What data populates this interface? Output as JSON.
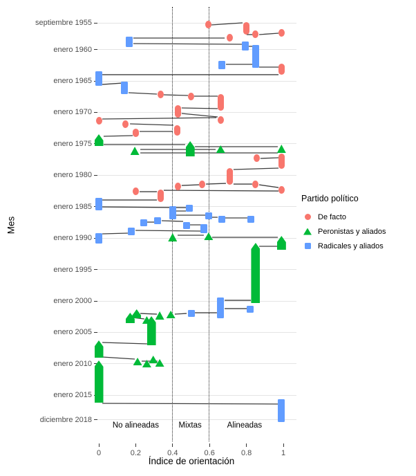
{
  "figure": {
    "x_axis_title": "Índice de orientación",
    "y_axis_title": "Mes",
    "background": "#FFFFFF",
    "gridline_color": "#E4E4E4",
    "connector_color": "#1C1C1C"
  },
  "legend": {
    "title": "Partido político",
    "items": [
      {
        "label": "De facto",
        "color": "#F8766D",
        "shape": "circle"
      },
      {
        "label": "Peronistas y aliados",
        "color": "#00BA38",
        "shape": "triangle"
      },
      {
        "label": "Radicales y aliados",
        "color": "#619CFF",
        "shape": "square"
      }
    ]
  },
  "chart_data": {
    "type": "scatter",
    "subtype": "government-timeline-segments",
    "title": "",
    "xlabel": "Índice de orientación",
    "ylabel": "Mes",
    "xlim": [
      0,
      1
    ],
    "ylim_years": [
      1955.75,
      2018.92
    ],
    "x_ticks": [
      {
        "label": "0",
        "v": 0
      },
      {
        "label": "0.2",
        "v": 0.2
      },
      {
        "label": "0.4",
        "v": 0.4
      },
      {
        "label": "0.6",
        "v": 0.6
      },
      {
        "label": "0.8",
        "v": 0.8
      },
      {
        "label": "1",
        "v": 1
      }
    ],
    "y_ticks": [
      {
        "label": "septiembre 1955",
        "year": 1955.75
      },
      {
        "label": "enero 1960",
        "year": 1960.0
      },
      {
        "label": "enero 1965",
        "year": 1965.0
      },
      {
        "label": "enero 1970",
        "year": 1970.0
      },
      {
        "label": "enero 1975",
        "year": 1975.0
      },
      {
        "label": "enero 1980",
        "year": 1980.0
      },
      {
        "label": "enero 1985",
        "year": 1985.0
      },
      {
        "label": "enero 1990",
        "year": 1990.0
      },
      {
        "label": "enero 1995",
        "year": 1995.0
      },
      {
        "label": "enero 2000",
        "year": 2000.0
      },
      {
        "label": "enero 2005",
        "year": 2005.0
      },
      {
        "label": "enero 2010",
        "year": 2010.0
      },
      {
        "label": "enero 2015",
        "year": 2015.0
      },
      {
        "label": "diciembre 2018",
        "year": 2018.92
      }
    ],
    "reference_lines_x": [
      0.4,
      0.6
    ],
    "zones": [
      {
        "label": "No alineadas",
        "x_center": 0.2
      },
      {
        "label": "Mixtas",
        "x_center": 0.495
      },
      {
        "label": "Alineadas",
        "x_center": 0.79
      }
    ],
    "series": [
      {
        "name": "De facto",
        "color": "#F8766D",
        "shape": "circle",
        "points": [
          [
            0.595,
            1956.08,
            null
          ],
          [
            0.8,
            1955.64,
            1957.62
          ],
          [
            0.71,
            1958.17,
            null
          ],
          [
            0.85,
            1957.62,
            null
          ],
          [
            0.99,
            1957.4,
            null
          ],
          [
            0.99,
            1962.24,
            1964.0
          ],
          [
            0.335,
            1967.09,
            null
          ],
          [
            0.5,
            1967.42,
            null
          ],
          [
            0.66,
            1967.09,
            1969.73
          ],
          [
            0.43,
            1968.85,
            1970.83
          ],
          [
            0.66,
            1970.61,
            1971.71
          ],
          [
            0.0,
            1971.27,
            null
          ],
          [
            0.145,
            1971.82,
            null
          ],
          [
            0.425,
            1972.04,
            1973.69
          ],
          [
            0.2,
            1972.59,
            1973.91
          ],
          [
            0.855,
            1977.32,
            null
          ],
          [
            0.99,
            1976.55,
            1978.97
          ],
          [
            0.71,
            1978.86,
            1981.51
          ],
          [
            0.43,
            1981.73,
            null
          ],
          [
            0.56,
            1981.4,
            null
          ],
          [
            0.85,
            1981.4,
            null
          ],
          [
            0.99,
            1981.73,
            1982.94
          ],
          [
            0.2,
            1982.5,
            null
          ],
          [
            0.335,
            1982.28,
            1984.26
          ]
        ]
      },
      {
        "name": "Peronistas y aliados",
        "color": "#00BA38",
        "shape": "triangle",
        "points": [
          [
            0.0,
            1973.47,
            1975.34
          ],
          [
            0.195,
            1975.45,
            1976.77
          ],
          [
            0.495,
            1974.57,
            1976.99
          ],
          [
            0.66,
            1975.23,
            1976.44
          ],
          [
            0.99,
            1975.12,
            1976.44
          ],
          [
            0.4,
            1989.21,
            1990.53
          ],
          [
            0.595,
            1989.1,
            1990.31
          ],
          [
            0.99,
            1989.65,
            1991.85
          ],
          [
            0.85,
            1990.75,
            2000.33
          ],
          [
            0.39,
            2001.54,
            2002.75
          ],
          [
            0.33,
            2001.65,
            2002.97
          ],
          [
            0.205,
            2001.32,
            2002.75
          ],
          [
            0.26,
            2002.42,
            2003.52
          ],
          [
            0.17,
            2001.87,
            2003.52
          ],
          [
            0.285,
            2002.42,
            2007.04
          ],
          [
            0.0,
            2006.27,
            2009.02
          ],
          [
            0.21,
            2009.02,
            2010.12
          ],
          [
            0.26,
            2009.35,
            2010.23
          ],
          [
            0.295,
            2008.69,
            2009.79
          ],
          [
            0.33,
            2009.24,
            2010.12
          ],
          [
            0.0,
            2009.46,
            2016.17
          ]
        ]
      },
      {
        "name": "Radicales y aliados",
        "color": "#619CFF",
        "shape": "square",
        "points": [
          [
            0.165,
            1957.95,
            1959.6
          ],
          [
            0.795,
            1958.72,
            1960.15
          ],
          [
            0.85,
            1959.27,
            1962.9
          ],
          [
            0.665,
            1961.8,
            1963.12
          ],
          [
            0.0,
            1963.45,
            1965.77
          ],
          [
            0.14,
            1965.11,
            1967.09
          ],
          [
            0.0,
            1983.6,
            1985.58
          ],
          [
            0.49,
            1984.7,
            1985.8
          ],
          [
            0.4,
            1984.92,
            1987.01
          ],
          [
            0.595,
            1985.91,
            1987.01
          ],
          [
            0.665,
            1986.46,
            1987.56
          ],
          [
            0.825,
            1986.46,
            1987.56
          ],
          [
            0.32,
            1986.68,
            1987.78
          ],
          [
            0.245,
            1987.01,
            1988.11
          ],
          [
            0.475,
            1987.45,
            1988.44
          ],
          [
            0.57,
            1987.78,
            1989.21
          ],
          [
            0.175,
            1988.33,
            1989.54
          ],
          [
            0.0,
            1989.21,
            1990.86
          ],
          [
            0.66,
            1999.45,
            2002.75
          ],
          [
            0.82,
            2000.77,
            2001.87
          ],
          [
            0.5,
            2001.43,
            2002.53
          ],
          [
            0.99,
            2015.62,
            2019.3
          ]
        ]
      }
    ],
    "connectors": [
      [
        0.61,
        1956.08,
        0.779,
        1955.75
      ],
      [
        0.801,
        1957.62,
        0.835,
        1957.62
      ],
      [
        0.869,
        1957.62,
        0.974,
        1957.4
      ],
      [
        0.187,
        1958.17,
        0.682,
        1958.17
      ],
      [
        0.187,
        1959.05,
        0.775,
        1959.16
      ],
      [
        0.813,
        1959.49,
        0.835,
        1959.49
      ],
      [
        0.689,
        1962.35,
        0.835,
        1962.35
      ],
      [
        0.869,
        1962.79,
        0.974,
        1962.79
      ],
      [
        0.019,
        1964.0,
        0.974,
        1964.0
      ],
      [
        0.019,
        1965.55,
        0.127,
        1965.33
      ],
      [
        0.161,
        1966.87,
        0.315,
        1967.09
      ],
      [
        0.352,
        1967.2,
        0.483,
        1967.31
      ],
      [
        0.517,
        1967.42,
        0.644,
        1967.42
      ],
      [
        0.449,
        1969.29,
        0.644,
        1969.4
      ],
      [
        0.449,
        1970.17,
        0.644,
        1970.72
      ],
      [
        0.019,
        1971.05,
        0.637,
        1970.83
      ],
      [
        0.169,
        1971.82,
        0.404,
        1972.04
      ],
      [
        0.221,
        1973.03,
        0.401,
        1973.03
      ],
      [
        0.026,
        1973.8,
        0.184,
        1973.69
      ],
      [
        0.026,
        1975.12,
        0.468,
        1975.12
      ],
      [
        0.225,
        1975.89,
        0.633,
        1975.89
      ],
      [
        0.521,
        1975.45,
        0.97,
        1975.45
      ],
      [
        0.225,
        1976.44,
        0.97,
        1976.44
      ],
      [
        0.876,
        1977.32,
        0.974,
        1977.21
      ],
      [
        0.73,
        1979.08,
        0.974,
        1978.86
      ],
      [
        0.73,
        1981.4,
        0.831,
        1981.4
      ],
      [
        0.581,
        1981.4,
        0.689,
        1981.29
      ],
      [
        0.449,
        1981.62,
        0.543,
        1981.51
      ],
      [
        0.869,
        1981.51,
        0.974,
        1981.95
      ],
      [
        0.221,
        1982.61,
        0.315,
        1982.61
      ],
      [
        0.352,
        1982.39,
        0.974,
        1982.5
      ],
      [
        0.019,
        1983.93,
        0.315,
        1983.93
      ],
      [
        0.019,
        1985.03,
        0.472,
        1985.14
      ],
      [
        0.412,
        1985.69,
        0.472,
        1985.69
      ],
      [
        0.412,
        1986.35,
        0.577,
        1986.35
      ],
      [
        0.614,
        1986.68,
        0.644,
        1986.68
      ],
      [
        0.682,
        1986.79,
        0.805,
        1986.79
      ],
      [
        0.255,
        1987.45,
        0.303,
        1987.45
      ],
      [
        0.341,
        1987.23,
        0.457,
        1987.34
      ],
      [
        0.494,
        1987.89,
        0.554,
        1987.89
      ],
      [
        0.199,
        1988.77,
        0.554,
        1988.88
      ],
      [
        0.019,
        1989.32,
        0.157,
        1989.21
      ],
      [
        0.427,
        1989.54,
        0.569,
        1989.54
      ],
      [
        0.614,
        1989.87,
        0.97,
        1989.87
      ],
      [
        0.869,
        1991.3,
        0.97,
        1991.3
      ],
      [
        0.682,
        1999.89,
        0.824,
        1999.89
      ],
      [
        0.682,
        2001.21,
        0.805,
        2001.21
      ],
      [
        0.521,
        2001.87,
        0.64,
        2001.87
      ],
      [
        0.412,
        2002.09,
        0.476,
        2001.98
      ],
      [
        0.225,
        2001.98,
        0.315,
        2002.09
      ],
      [
        0.187,
        2002.64,
        0.247,
        2002.86
      ],
      [
        0.019,
        2006.6,
        0.262,
        2006.82
      ],
      [
        0.019,
        2008.91,
        0.195,
        2009.24
      ],
      [
        0.232,
        2009.57,
        0.318,
        2009.57
      ],
      [
        0.019,
        2016.28,
        0.974,
        2016.39
      ]
    ]
  }
}
